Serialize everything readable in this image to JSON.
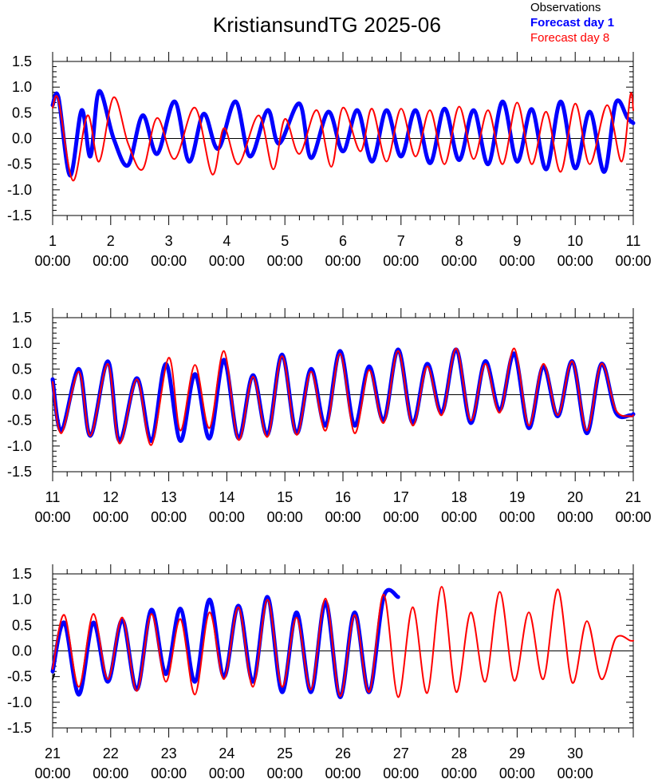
{
  "title": "KristiansundTG 2025-06",
  "legend": {
    "observations": "Observations",
    "forecast_day_1": "Forecast day 1",
    "forecast_day_8": "Forecast day 8"
  },
  "colors": {
    "observations": "#000000",
    "forecast_day_1": "#0000ff",
    "forecast_day_8": "#ff0000"
  },
  "chart_data": [
    {
      "type": "line",
      "x_range_days": [
        1,
        11
      ],
      "ylim": [
        -1.5,
        1.5
      ],
      "ytick_labels": [
        "1.5",
        "1.0",
        "0.5",
        "0.0",
        "-0.5",
        "-1.0",
        "-1.5"
      ],
      "xtick_labels": [
        [
          "1",
          "00:00"
        ],
        [
          "2",
          "00:00"
        ],
        [
          "3",
          "00:00"
        ],
        [
          "4",
          "00:00"
        ],
        [
          "5",
          "00:00"
        ],
        [
          "6",
          "00:00"
        ],
        [
          "7",
          "00:00"
        ],
        [
          "8",
          "00:00"
        ],
        [
          "9",
          "00:00"
        ],
        [
          "10",
          "00:00"
        ],
        [
          "11",
          "00:00"
        ]
      ],
      "series": [
        {
          "name": "Forecast day 1",
          "color": "#0000ff",
          "x": [
            1.0,
            1.1,
            1.3,
            1.5,
            1.65,
            1.8,
            2.05,
            2.3,
            2.55,
            2.8,
            3.1,
            3.35,
            3.6,
            3.85,
            4.15,
            4.4,
            4.7,
            4.9,
            5.25,
            5.45,
            5.75,
            6.0,
            6.25,
            6.5,
            6.75,
            7.0,
            7.25,
            7.5,
            7.75,
            8.0,
            8.25,
            8.5,
            8.75,
            9.0,
            9.25,
            9.5,
            9.75,
            10.0,
            10.25,
            10.5,
            10.7,
            10.9,
            11.0
          ],
          "y": [
            0.65,
            0.8,
            -0.72,
            0.55,
            -0.35,
            0.92,
            0.0,
            -0.52,
            0.45,
            -0.3,
            0.72,
            -0.45,
            0.48,
            -0.2,
            0.72,
            -0.35,
            0.55,
            -0.1,
            0.68,
            -0.38,
            0.52,
            -0.25,
            0.55,
            -0.45,
            0.55,
            -0.35,
            0.55,
            -0.48,
            0.58,
            -0.42,
            0.55,
            -0.5,
            0.72,
            -0.45,
            0.57,
            -0.6,
            0.72,
            -0.58,
            0.52,
            -0.65,
            0.7,
            0.4,
            0.3
          ]
        },
        {
          "name": "Forecast day 8",
          "color": "#ff0000",
          "x": [
            1.0,
            1.1,
            1.35,
            1.6,
            1.8,
            2.05,
            2.3,
            2.55,
            2.8,
            3.1,
            3.45,
            3.75,
            3.95,
            4.2,
            4.55,
            4.8,
            5.0,
            5.25,
            5.55,
            5.8,
            6.0,
            6.3,
            6.5,
            6.75,
            7.0,
            7.25,
            7.5,
            7.75,
            8.0,
            8.25,
            8.5,
            8.75,
            9.0,
            9.25,
            9.5,
            9.75,
            10.0,
            10.25,
            10.55,
            10.8,
            10.95,
            11.0
          ],
          "y": [
            0.6,
            0.75,
            -0.82,
            0.45,
            -0.45,
            0.8,
            -0.1,
            -0.6,
            0.4,
            -0.4,
            0.6,
            -0.7,
            0.2,
            -0.5,
            0.45,
            -0.6,
            0.38,
            -0.3,
            0.55,
            -0.55,
            0.6,
            -0.25,
            0.58,
            -0.45,
            0.58,
            -0.35,
            0.55,
            -0.5,
            0.62,
            -0.4,
            0.55,
            -0.5,
            0.7,
            -0.5,
            0.52,
            -0.65,
            0.68,
            -0.5,
            0.65,
            -0.45,
            0.85,
            0.55
          ]
        }
      ]
    },
    {
      "type": "line",
      "x_range_days": [
        11,
        21
      ],
      "ylim": [
        -1.5,
        1.5
      ],
      "ytick_labels": [
        "1.5",
        "1.0",
        "0.5",
        "0.0",
        "-0.5",
        "-1.0",
        "-1.5"
      ],
      "xtick_labels": [
        [
          "11",
          "00:00"
        ],
        [
          "12",
          "00:00"
        ],
        [
          "13",
          "00:00"
        ],
        [
          "14",
          "00:00"
        ],
        [
          "15",
          "00:00"
        ],
        [
          "16",
          "00:00"
        ],
        [
          "17",
          "00:00"
        ],
        [
          "18",
          "00:00"
        ],
        [
          "19",
          "00:00"
        ],
        [
          "20",
          "00:00"
        ],
        [
          "21",
          "00:00"
        ]
      ],
      "series": [
        {
          "name": "Forecast day 1",
          "color": "#0000ff",
          "x": [
            11.0,
            11.15,
            11.45,
            11.65,
            11.95,
            12.15,
            12.45,
            12.7,
            12.95,
            13.2,
            13.45,
            13.7,
            13.95,
            14.2,
            14.45,
            14.7,
            14.95,
            15.2,
            15.45,
            15.7,
            15.95,
            16.2,
            16.45,
            16.7,
            16.95,
            17.2,
            17.45,
            17.7,
            17.95,
            18.2,
            18.45,
            18.7,
            18.95,
            19.2,
            19.45,
            19.7,
            19.95,
            20.2,
            20.45,
            20.7,
            20.95,
            21.0
          ],
          "y": [
            0.3,
            -0.7,
            0.5,
            -0.8,
            0.65,
            -0.9,
            0.32,
            -0.9,
            0.6,
            -0.9,
            0.4,
            -0.85,
            0.68,
            -0.85,
            0.38,
            -0.78,
            0.78,
            -0.75,
            0.5,
            -0.6,
            0.85,
            -0.6,
            0.55,
            -0.5,
            0.88,
            -0.55,
            0.6,
            -0.35,
            0.88,
            -0.55,
            0.65,
            -0.3,
            0.8,
            -0.65,
            0.55,
            -0.42,
            0.65,
            -0.75,
            0.6,
            -0.35,
            -0.4,
            -0.38
          ]
        },
        {
          "name": "Forecast day 8",
          "color": "#ff0000",
          "x": [
            11.0,
            11.15,
            11.45,
            11.65,
            11.95,
            12.15,
            12.45,
            12.7,
            13.0,
            13.2,
            13.45,
            13.7,
            13.95,
            14.2,
            14.45,
            14.7,
            14.95,
            15.2,
            15.45,
            15.7,
            15.95,
            16.2,
            16.45,
            16.7,
            16.95,
            17.2,
            17.45,
            17.7,
            17.95,
            18.2,
            18.45,
            18.7,
            18.95,
            19.2,
            19.45,
            19.7,
            19.95,
            20.2,
            20.45,
            20.7,
            20.95,
            21.0
          ],
          "y": [
            0.25,
            -0.75,
            0.45,
            -0.8,
            0.6,
            -0.95,
            0.3,
            -0.98,
            0.72,
            -0.7,
            0.58,
            -0.65,
            0.85,
            -0.88,
            0.35,
            -0.82,
            0.75,
            -0.78,
            0.45,
            -0.7,
            0.8,
            -0.75,
            0.48,
            -0.55,
            0.85,
            -0.6,
            0.55,
            -0.4,
            0.9,
            -0.5,
            0.6,
            -0.35,
            0.9,
            -0.6,
            0.6,
            -0.4,
            0.65,
            -0.7,
            0.6,
            -0.3,
            -0.42,
            -0.4
          ]
        }
      ]
    },
    {
      "type": "line",
      "x_range_days": [
        21,
        31
      ],
      "ylim": [
        -1.5,
        1.5
      ],
      "ytick_labels": [
        "1.5",
        "1.0",
        "0.5",
        "0.0",
        "-0.5",
        "-1.0",
        "-1.5"
      ],
      "xtick_labels": [
        [
          "21",
          "00:00"
        ],
        [
          "22",
          "00:00"
        ],
        [
          "23",
          "00:00"
        ],
        [
          "24",
          "00:00"
        ],
        [
          "25",
          "00:00"
        ],
        [
          "26",
          "00:00"
        ],
        [
          "27",
          "00:00"
        ],
        [
          "28",
          "00:00"
        ],
        [
          "29",
          "00:00"
        ],
        [
          "30",
          "00:00"
        ]
      ],
      "series": [
        {
          "name": "Observations",
          "color": "#000000",
          "x": [
            21.0,
            21.03
          ],
          "y": [
            -0.55,
            -0.45
          ]
        },
        {
          "name": "Forecast day 1",
          "color": "#0000ff",
          "x": [
            21.0,
            21.2,
            21.45,
            21.7,
            21.95,
            22.2,
            22.45,
            22.7,
            22.95,
            23.2,
            23.45,
            23.7,
            23.95,
            24.2,
            24.45,
            24.7,
            24.95,
            25.2,
            25.45,
            25.7,
            25.95,
            26.2,
            26.45,
            26.7,
            26.95
          ],
          "y": [
            -0.4,
            0.55,
            -0.85,
            0.55,
            -0.6,
            0.6,
            -0.75,
            0.8,
            -0.45,
            0.82,
            -0.6,
            1.0,
            -0.5,
            0.88,
            -0.6,
            1.05,
            -0.8,
            0.75,
            -0.8,
            0.95,
            -0.9,
            0.75,
            -0.8,
            1.05,
            1.05
          ]
        },
        {
          "name": "Forecast day 8",
          "color": "#ff0000",
          "x": [
            21.0,
            21.2,
            21.45,
            21.7,
            21.95,
            22.2,
            22.45,
            22.7,
            22.95,
            23.2,
            23.45,
            23.7,
            23.95,
            24.2,
            24.45,
            24.7,
            24.95,
            25.2,
            25.45,
            25.7,
            25.95,
            26.2,
            26.45,
            26.7,
            26.95,
            27.2,
            27.45,
            27.7,
            27.95,
            28.2,
            28.45,
            28.7,
            28.95,
            29.2,
            29.45,
            29.7,
            29.95,
            30.2,
            30.45,
            30.7,
            30.95,
            31.0
          ],
          "y": [
            -0.35,
            0.7,
            -0.7,
            0.72,
            -0.55,
            0.65,
            -0.78,
            0.72,
            -0.6,
            0.62,
            -0.85,
            0.75,
            -0.55,
            0.85,
            -0.7,
            1.0,
            -0.7,
            0.65,
            -0.75,
            1.02,
            -0.88,
            0.7,
            -0.8,
            1.1,
            -0.9,
            0.85,
            -0.82,
            1.25,
            -0.8,
            0.75,
            -0.6,
            1.15,
            -0.58,
            0.75,
            -0.55,
            1.2,
            -0.62,
            0.58,
            -0.55,
            0.25,
            0.2,
            0.2
          ]
        }
      ]
    }
  ]
}
